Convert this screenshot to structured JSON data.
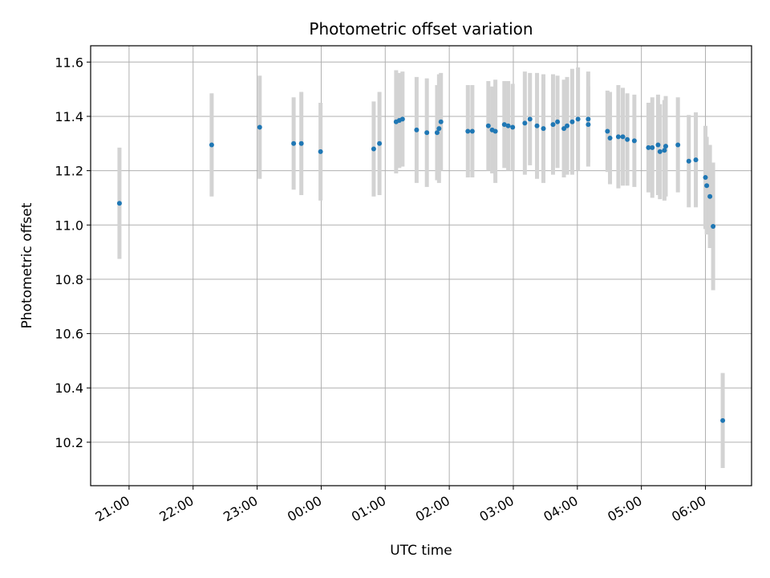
{
  "chart_data": {
    "type": "scatter",
    "title": "Photometric offset variation",
    "xlabel": "UTC time",
    "ylabel": "Photometric offset",
    "x_tick_labels": [
      "21:00",
      "22:00",
      "23:00",
      "00:00",
      "01:00",
      "02:00",
      "03:00",
      "04:00",
      "05:00",
      "06:00"
    ],
    "x_ticks_hours": [
      21,
      22,
      23,
      24,
      25,
      26,
      27,
      28,
      29,
      30
    ],
    "xlim_hours": [
      20.4,
      30.72
    ],
    "y_tick_labels": [
      "10.2",
      "10.4",
      "10.6",
      "10.8",
      "11.0",
      "11.2",
      "11.4",
      "11.6"
    ],
    "y_ticks": [
      10.2,
      10.4,
      10.6,
      10.8,
      11.0,
      11.2,
      11.4,
      11.6
    ],
    "ylim": [
      10.04,
      11.66
    ],
    "grid": true,
    "colors": {
      "point": "#1f77b4",
      "errorbar": "#d3d3d3",
      "grid": "#b0b0b0"
    },
    "series": [
      {
        "x_hours": [
          20.85,
          22.29,
          23.04,
          23.57,
          23.69,
          23.99,
          24.82,
          24.91,
          25.17,
          25.22,
          25.27,
          25.49,
          25.65,
          25.81,
          25.84,
          25.87,
          26.29,
          26.36,
          26.61,
          26.67,
          26.72,
          26.86,
          26.92,
          26.99,
          27.18,
          27.26,
          27.37,
          27.47,
          27.62,
          27.69,
          27.79,
          27.84,
          27.92,
          28.01,
          28.17,
          28.17,
          28.47,
          28.51,
          28.64,
          28.71,
          28.78,
          28.89,
          29.11,
          29.17,
          29.26,
          29.29,
          29.36,
          29.38,
          29.57,
          29.74,
          29.85,
          30.0,
          30.02,
          30.07,
          30.12,
          30.27
        ],
        "y": [
          11.08,
          11.295,
          11.36,
          11.3,
          11.3,
          11.27,
          11.28,
          11.3,
          11.38,
          11.385,
          11.39,
          11.35,
          11.34,
          11.34,
          11.355,
          11.38,
          11.345,
          11.345,
          11.365,
          11.35,
          11.345,
          11.37,
          11.365,
          11.36,
          11.375,
          11.39,
          11.365,
          11.355,
          11.37,
          11.38,
          11.355,
          11.365,
          11.38,
          11.39,
          11.39,
          11.37,
          11.345,
          11.32,
          11.325,
          11.325,
          11.315,
          11.31,
          11.285,
          11.285,
          11.295,
          11.27,
          11.275,
          11.29,
          11.295,
          11.235,
          11.24,
          11.175,
          11.145,
          11.105,
          10.995,
          10.28
        ],
        "yerr": [
          0.205,
          0.19,
          0.19,
          0.17,
          0.19,
          0.18,
          0.175,
          0.19,
          0.19,
          0.175,
          0.175,
          0.195,
          0.2,
          0.175,
          0.2,
          0.18,
          0.17,
          0.17,
          0.165,
          0.16,
          0.19,
          0.16,
          0.165,
          0.16,
          0.19,
          0.17,
          0.195,
          0.2,
          0.185,
          0.17,
          0.18,
          0.18,
          0.195,
          0.19,
          0.175,
          0.14,
          0.15,
          0.17,
          0.19,
          0.18,
          0.17,
          0.17,
          0.165,
          0.185,
          0.185,
          0.175,
          0.185,
          0.185,
          0.175,
          0.17,
          0.175,
          0.19,
          0.18,
          0.19,
          0.235,
          0.175
        ]
      }
    ]
  }
}
